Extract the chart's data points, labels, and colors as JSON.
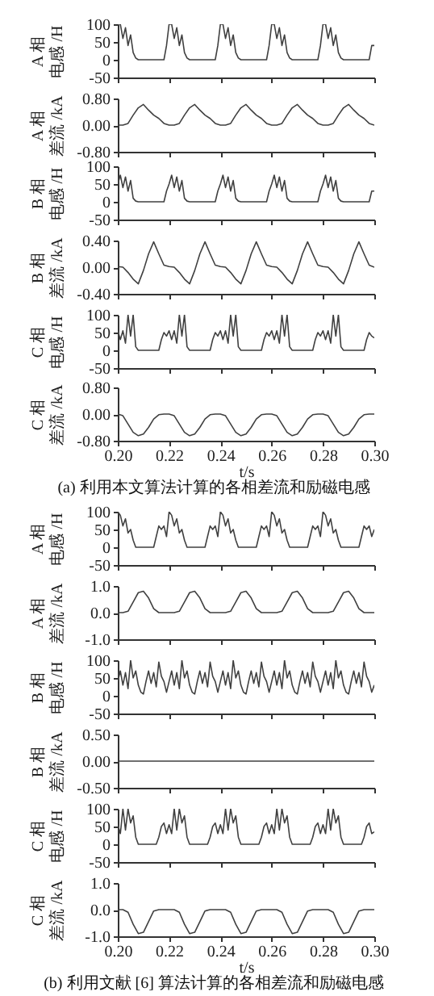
{
  "chart_data": [
    {
      "type": "line",
      "ylabel": "A 相电感 /H",
      "xlim": [
        0.2,
        0.3
      ],
      "xticks": [
        {
          "value": 0.2,
          "label": null
        },
        {
          "value": 0.22,
          "label": null
        },
        {
          "value": 0.24,
          "label": null
        },
        {
          "value": 0.26,
          "label": null
        },
        {
          "value": 0.28,
          "label": null
        },
        {
          "value": 0.3,
          "label": null
        }
      ],
      "ylim": [
        -50,
        100
      ],
      "yticks": [
        -50,
        0,
        50,
        100
      ],
      "tick_labels": "y",
      "x": [
        0.2,
        0.201,
        0.202,
        0.203,
        0.204,
        0.205,
        0.206,
        0.207,
        0.208,
        0.209,
        0.21,
        0.211,
        0.212,
        0.213,
        0.214,
        0.215,
        0.216,
        0.217,
        0.218,
        0.219,
        0.22,
        0.221,
        0.222,
        0.223,
        0.224,
        0.225,
        0.226,
        0.227,
        0.228,
        0.229,
        0.23,
        0.231,
        0.232,
        0.233,
        0.234,
        0.235,
        0.236,
        0.237,
        0.238,
        0.239,
        0.24,
        0.241,
        0.242,
        0.243,
        0.244,
        0.245,
        0.246,
        0.247,
        0.248,
        0.249,
        0.25,
        0.251,
        0.252,
        0.253,
        0.254,
        0.255,
        0.256,
        0.257,
        0.258,
        0.259,
        0.26,
        0.261,
        0.262,
        0.263,
        0.264,
        0.265,
        0.266,
        0.267,
        0.268,
        0.269,
        0.27,
        0.271,
        0.272,
        0.273,
        0.274,
        0.275,
        0.276,
        0.277,
        0.278,
        0.279,
        0.28,
        0.281,
        0.282,
        0.283,
        0.284,
        0.285,
        0.286,
        0.287,
        0.288,
        0.289,
        0.29,
        0.291,
        0.292,
        0.293,
        0.294,
        0.295,
        0.296,
        0.297,
        0.298,
        0.299,
        0.3
      ],
      "series": [
        {
          "color": "#404040",
          "values": [
            100,
            100,
            60,
            90,
            40,
            70,
            20,
            5,
            0,
            0,
            0,
            0,
            0,
            0,
            0,
            0,
            0,
            0,
            0,
            40,
            100,
            100,
            60,
            90,
            40,
            70,
            20,
            5,
            0,
            0,
            0,
            0,
            0,
            0,
            0,
            0,
            0,
            0,
            0,
            40,
            100,
            100,
            60,
            90,
            40,
            70,
            20,
            5,
            0,
            0,
            0,
            0,
            0,
            0,
            0,
            0,
            0,
            0,
            0,
            40,
            100,
            100,
            60,
            90,
            40,
            70,
            20,
            5,
            0,
            0,
            0,
            0,
            0,
            0,
            0,
            0,
            0,
            0,
            0,
            40,
            100,
            100,
            60,
            90,
            40,
            70,
            20,
            5,
            0,
            0,
            0,
            0,
            0,
            0,
            0,
            0,
            0,
            0,
            0,
            40,
            40
          ]
        }
      ]
    },
    {
      "type": "line",
      "ylabel": "A 相差流 /kA",
      "xlim": [
        0.2,
        0.3
      ],
      "xticks": [
        {
          "value": 0.2,
          "label": null
        },
        {
          "value": 0.22,
          "label": null
        },
        {
          "value": 0.24,
          "label": null
        },
        {
          "value": 0.26,
          "label": null
        },
        {
          "value": 0.28,
          "label": null
        },
        {
          "value": 0.3,
          "label": null
        }
      ],
      "ylim": [
        -0.8,
        0.8
      ],
      "yticks": [
        {
          "value": -0.8,
          "label": "-0.80"
        },
        {
          "value": 0,
          "label": "0.00"
        },
        {
          "value": 0.8,
          "label": "0.80"
        }
      ],
      "tick_labels": "y",
      "x": [
        0.2,
        0.202,
        0.204,
        0.206,
        0.208,
        0.21,
        0.212,
        0.214,
        0.216,
        0.218,
        0.22,
        0.222,
        0.224,
        0.226,
        0.228,
        0.23,
        0.232,
        0.234,
        0.236,
        0.238,
        0.24,
        0.242,
        0.244,
        0.246,
        0.248,
        0.25,
        0.252,
        0.254,
        0.256,
        0.258,
        0.26,
        0.262,
        0.264,
        0.266,
        0.268,
        0.27,
        0.272,
        0.274,
        0.276,
        0.278,
        0.28,
        0.282,
        0.284,
        0.286,
        0.288,
        0.29,
        0.292,
        0.294,
        0.296,
        0.298,
        0.3
      ],
      "series": [
        {
          "color": "#404040",
          "values": [
            0,
            0,
            0.05,
            0.3,
            0.52,
            0.62,
            0.45,
            0.3,
            0.2,
            0.05,
            0,
            0,
            0.05,
            0.3,
            0.52,
            0.62,
            0.45,
            0.3,
            0.2,
            0.05,
            0,
            0,
            0.05,
            0.3,
            0.52,
            0.62,
            0.45,
            0.3,
            0.2,
            0.05,
            0,
            0,
            0.05,
            0.3,
            0.52,
            0.62,
            0.45,
            0.3,
            0.2,
            0.05,
            0,
            0,
            0.05,
            0.3,
            0.52,
            0.62,
            0.45,
            0.3,
            0.2,
            0.05,
            0
          ]
        }
      ]
    },
    {
      "type": "line",
      "ylabel": "B 相电感 /H",
      "xlim": [
        0.2,
        0.3
      ],
      "xticks": [
        {
          "value": 0.2,
          "label": null
        },
        {
          "value": 0.22,
          "label": null
        },
        {
          "value": 0.24,
          "label": null
        },
        {
          "value": 0.26,
          "label": null
        },
        {
          "value": 0.28,
          "label": null
        },
        {
          "value": 0.3,
          "label": null
        }
      ],
      "ylim": [
        -50,
        100
      ],
      "yticks": [
        -50,
        0,
        50,
        100
      ],
      "tick_labels": "y",
      "x": [
        0.2,
        0.201,
        0.202,
        0.203,
        0.204,
        0.205,
        0.206,
        0.207,
        0.208,
        0.209,
        0.21,
        0.211,
        0.212,
        0.213,
        0.214,
        0.215,
        0.216,
        0.217,
        0.218,
        0.219,
        0.22,
        0.221,
        0.222,
        0.223,
        0.224,
        0.225,
        0.226,
        0.227,
        0.228,
        0.229,
        0.23,
        0.231,
        0.232,
        0.233,
        0.234,
        0.235,
        0.236,
        0.237,
        0.238,
        0.239,
        0.24,
        0.241,
        0.242,
        0.243,
        0.244,
        0.245,
        0.246,
        0.247,
        0.248,
        0.249,
        0.25,
        0.251,
        0.252,
        0.253,
        0.254,
        0.255,
        0.256,
        0.257,
        0.258,
        0.259,
        0.26,
        0.261,
        0.262,
        0.263,
        0.264,
        0.265,
        0.266,
        0.267,
        0.268,
        0.269,
        0.27,
        0.271,
        0.272,
        0.273,
        0.274,
        0.275,
        0.276,
        0.277,
        0.278,
        0.279,
        0.28,
        0.281,
        0.282,
        0.283,
        0.284,
        0.285,
        0.286,
        0.287,
        0.288,
        0.289,
        0.29,
        0.291,
        0.292,
        0.293,
        0.294,
        0.295,
        0.296,
        0.297,
        0.298,
        0.299,
        0.3
      ],
      "series": [
        {
          "color": "#404040",
          "values": [
            50,
            75,
            40,
            70,
            30,
            60,
            10,
            2,
            0,
            0,
            0,
            0,
            0,
            0,
            0,
            0,
            0,
            0,
            0,
            30,
            50,
            75,
            40,
            70,
            30,
            60,
            10,
            2,
            0,
            0,
            0,
            0,
            0,
            0,
            0,
            0,
            0,
            0,
            0,
            30,
            50,
            75,
            40,
            70,
            30,
            60,
            10,
            2,
            0,
            0,
            0,
            0,
            0,
            0,
            0,
            0,
            0,
            0,
            0,
            30,
            50,
            75,
            40,
            70,
            30,
            60,
            10,
            2,
            0,
            0,
            0,
            0,
            0,
            0,
            0,
            0,
            0,
            0,
            0,
            30,
            50,
            75,
            40,
            70,
            30,
            60,
            10,
            2,
            0,
            0,
            0,
            0,
            0,
            0,
            0,
            0,
            0,
            0,
            0,
            30,
            30
          ]
        }
      ]
    },
    {
      "type": "line",
      "ylabel": "B 相差流 /kA",
      "xlim": [
        0.2,
        0.3
      ],
      "xticks": [
        {
          "value": 0.2,
          "label": null
        },
        {
          "value": 0.22,
          "label": null
        },
        {
          "value": 0.24,
          "label": null
        },
        {
          "value": 0.26,
          "label": null
        },
        {
          "value": 0.28,
          "label": null
        },
        {
          "value": 0.3,
          "label": null
        }
      ],
      "ylim": [
        -0.4,
        0.4
      ],
      "yticks": [
        {
          "value": -0.4,
          "label": "-0.40"
        },
        {
          "value": 0,
          "label": "0.00"
        },
        {
          "value": 0.4,
          "label": "0.40"
        }
      ],
      "tick_labels": "y",
      "x": [
        0.2,
        0.202,
        0.204,
        0.206,
        0.208,
        0.21,
        0.212,
        0.214,
        0.216,
        0.218,
        0.22,
        0.222,
        0.224,
        0.226,
        0.228,
        0.23,
        0.232,
        0.234,
        0.236,
        0.238,
        0.24,
        0.242,
        0.244,
        0.246,
        0.248,
        0.25,
        0.252,
        0.254,
        0.256,
        0.258,
        0.26,
        0.262,
        0.264,
        0.266,
        0.268,
        0.27,
        0.272,
        0.274,
        0.276,
        0.278,
        0.28,
        0.282,
        0.284,
        0.286,
        0.288,
        0.29,
        0.292,
        0.294,
        0.296,
        0.298,
        0.3
      ],
      "series": [
        {
          "color": "#404040",
          "values": [
            0.01,
            0,
            -0.08,
            -0.18,
            -0.25,
            -0.05,
            0.2,
            0.38,
            0.2,
            0.03,
            0.01,
            0,
            -0.08,
            -0.18,
            -0.25,
            -0.05,
            0.2,
            0.38,
            0.2,
            0.03,
            0.01,
            0,
            -0.08,
            -0.18,
            -0.25,
            -0.05,
            0.2,
            0.38,
            0.2,
            0.03,
            0.01,
            0,
            -0.08,
            -0.18,
            -0.25,
            -0.05,
            0.2,
            0.38,
            0.2,
            0.03,
            0.01,
            0,
            -0.08,
            -0.18,
            -0.25,
            -0.05,
            0.2,
            0.38,
            0.2,
            0.03,
            0
          ]
        }
      ]
    },
    {
      "type": "line",
      "ylabel": "C 相电感 /H",
      "xlim": [
        0.2,
        0.3
      ],
      "xticks": [
        {
          "value": 0.2,
          "label": null
        },
        {
          "value": 0.22,
          "label": null
        },
        {
          "value": 0.24,
          "label": null
        },
        {
          "value": 0.26,
          "label": null
        },
        {
          "value": 0.28,
          "label": null
        },
        {
          "value": 0.3,
          "label": null
        }
      ],
      "ylim": [
        -50,
        100
      ],
      "yticks": [
        -50,
        0,
        50,
        100
      ],
      "tick_labels": "y",
      "x": [
        0.2,
        0.201,
        0.202,
        0.203,
        0.204,
        0.205,
        0.206,
        0.207,
        0.208,
        0.209,
        0.21,
        0.211,
        0.212,
        0.213,
        0.214,
        0.215,
        0.216,
        0.217,
        0.218,
        0.219,
        0.22,
        0.221,
        0.222,
        0.223,
        0.224,
        0.225,
        0.226,
        0.227,
        0.228,
        0.229,
        0.23,
        0.231,
        0.232,
        0.233,
        0.234,
        0.235,
        0.236,
        0.237,
        0.238,
        0.239,
        0.24,
        0.241,
        0.242,
        0.243,
        0.244,
        0.245,
        0.246,
        0.247,
        0.248,
        0.249,
        0.25,
        0.251,
        0.252,
        0.253,
        0.254,
        0.255,
        0.256,
        0.257,
        0.258,
        0.259,
        0.26,
        0.261,
        0.262,
        0.263,
        0.264,
        0.265,
        0.266,
        0.267,
        0.268,
        0.269,
        0.27,
        0.271,
        0.272,
        0.273,
        0.274,
        0.275,
        0.276,
        0.277,
        0.278,
        0.279,
        0.28,
        0.281,
        0.282,
        0.283,
        0.284,
        0.285,
        0.286,
        0.287,
        0.288,
        0.289,
        0.29,
        0.291,
        0.292,
        0.293,
        0.294,
        0.295,
        0.296,
        0.297,
        0.298,
        0.299,
        0.3
      ],
      "series": [
        {
          "color": "#404040",
          "values": [
            55,
            30,
            55,
            20,
            100,
            40,
            100,
            10,
            0,
            0,
            0,
            0,
            0,
            0,
            0,
            0,
            0,
            30,
            50,
            40,
            55,
            30,
            55,
            20,
            100,
            40,
            100,
            10,
            0,
            0,
            0,
            0,
            0,
            0,
            0,
            0,
            0,
            30,
            50,
            40,
            55,
            30,
            55,
            20,
            100,
            40,
            100,
            10,
            0,
            0,
            0,
            0,
            0,
            0,
            0,
            0,
            0,
            30,
            50,
            40,
            55,
            30,
            55,
            20,
            100,
            40,
            100,
            10,
            0,
            0,
            0,
            0,
            0,
            0,
            0,
            0,
            0,
            30,
            50,
            40,
            55,
            30,
            55,
            20,
            100,
            40,
            100,
            10,
            0,
            0,
            0,
            0,
            0,
            0,
            0,
            0,
            0,
            30,
            50,
            40,
            35
          ]
        }
      ]
    },
    {
      "type": "line",
      "ylabel": "C 相差流 /kA",
      "xlabel": "t/s",
      "annotations": [
        "(a) 利用本文算法计算的各相差流和励磁电感"
      ],
      "xlim": [
        0.2,
        0.3
      ],
      "xticks": [
        {
          "value": 0.2,
          "label": "0.20"
        },
        {
          "value": 0.22,
          "label": "0.22"
        },
        {
          "value": 0.24,
          "label": "0.24"
        },
        {
          "value": 0.26,
          "label": "0.26"
        },
        {
          "value": 0.28,
          "label": "0.28"
        },
        {
          "value": 0.3,
          "label": "0.30"
        }
      ],
      "ylim": [
        -0.8,
        0.8
      ],
      "yticks": [
        {
          "value": -0.8,
          "label": "-0.80"
        },
        {
          "value": 0,
          "label": "0.00"
        },
        {
          "value": 0.8,
          "label": "0.80"
        }
      ],
      "x": [
        0.2,
        0.202,
        0.204,
        0.206,
        0.208,
        0.21,
        0.212,
        0.214,
        0.216,
        0.218,
        0.22,
        0.222,
        0.224,
        0.226,
        0.228,
        0.23,
        0.232,
        0.234,
        0.236,
        0.238,
        0.24,
        0.242,
        0.244,
        0.246,
        0.248,
        0.25,
        0.252,
        0.254,
        0.256,
        0.258,
        0.26,
        0.262,
        0.264,
        0.266,
        0.268,
        0.27,
        0.272,
        0.274,
        0.276,
        0.278,
        0.28,
        0.282,
        0.284,
        0.286,
        0.288,
        0.29,
        0.292,
        0.294,
        0.296,
        0.298,
        0.3
      ],
      "series": [
        {
          "color": "#404040",
          "values": [
            0,
            -0.05,
            -0.3,
            -0.55,
            -0.65,
            -0.6,
            -0.4,
            -0.15,
            -0.02,
            0,
            0,
            -0.05,
            -0.3,
            -0.55,
            -0.65,
            -0.6,
            -0.4,
            -0.15,
            -0.02,
            0,
            0,
            -0.05,
            -0.3,
            -0.55,
            -0.65,
            -0.6,
            -0.4,
            -0.15,
            -0.02,
            0,
            0,
            -0.05,
            -0.3,
            -0.55,
            -0.65,
            -0.6,
            -0.4,
            -0.15,
            -0.02,
            0,
            0,
            -0.05,
            -0.3,
            -0.55,
            -0.65,
            -0.6,
            -0.4,
            -0.15,
            -0.02,
            0,
            0
          ]
        }
      ]
    },
    {
      "type": "line",
      "ylabel": "A 相电感 /H",
      "xlim": [
        0.2,
        0.3
      ],
      "xticks": [
        {
          "value": 0.2,
          "label": null
        },
        {
          "value": 0.22,
          "label": null
        },
        {
          "value": 0.24,
          "label": null
        },
        {
          "value": 0.26,
          "label": null
        },
        {
          "value": 0.28,
          "label": null
        },
        {
          "value": 0.3,
          "label": null
        }
      ],
      "ylim": [
        -50,
        100
      ],
      "yticks": [
        -50,
        0,
        50,
        100
      ],
      "tick_labels": "y",
      "x": [
        0.2,
        0.201,
        0.202,
        0.203,
        0.204,
        0.205,
        0.206,
        0.207,
        0.208,
        0.209,
        0.21,
        0.211,
        0.212,
        0.213,
        0.214,
        0.215,
        0.216,
        0.217,
        0.218,
        0.219,
        0.22,
        0.221,
        0.222,
        0.223,
        0.224,
        0.225,
        0.226,
        0.227,
        0.228,
        0.229,
        0.23,
        0.231,
        0.232,
        0.233,
        0.234,
        0.235,
        0.236,
        0.237,
        0.238,
        0.239,
        0.24,
        0.241,
        0.242,
        0.243,
        0.244,
        0.245,
        0.246,
        0.247,
        0.248,
        0.249,
        0.25,
        0.251,
        0.252,
        0.253,
        0.254,
        0.255,
        0.256,
        0.257,
        0.258,
        0.259,
        0.26,
        0.261,
        0.262,
        0.263,
        0.264,
        0.265,
        0.266,
        0.267,
        0.268,
        0.269,
        0.27,
        0.271,
        0.272,
        0.273,
        0.274,
        0.275,
        0.276,
        0.277,
        0.278,
        0.279,
        0.28,
        0.281,
        0.282,
        0.283,
        0.284,
        0.285,
        0.286,
        0.287,
        0.288,
        0.289,
        0.29,
        0.291,
        0.292,
        0.293,
        0.294,
        0.295,
        0.296,
        0.297,
        0.298,
        0.299,
        0.3
      ],
      "series": [
        {
          "color": "#404040",
          "values": [
            100,
            90,
            60,
            80,
            40,
            50,
            20,
            0,
            0,
            0,
            0,
            0,
            0,
            0,
            0,
            30,
            60,
            50,
            60,
            30,
            100,
            90,
            60,
            80,
            40,
            50,
            20,
            0,
            0,
            0,
            0,
            0,
            0,
            0,
            0,
            30,
            60,
            50,
            60,
            30,
            100,
            90,
            60,
            80,
            40,
            50,
            20,
            0,
            0,
            0,
            0,
            0,
            0,
            0,
            0,
            30,
            60,
            50,
            60,
            30,
            100,
            90,
            60,
            80,
            40,
            50,
            20,
            0,
            0,
            0,
            0,
            0,
            0,
            0,
            0,
            30,
            60,
            50,
            60,
            30,
            100,
            90,
            60,
            80,
            40,
            50,
            20,
            0,
            0,
            0,
            0,
            0,
            0,
            0,
            0,
            30,
            60,
            50,
            60,
            30,
            50
          ]
        }
      ]
    },
    {
      "type": "line",
      "ylabel": "A 相差流 /kA",
      "xlim": [
        0.2,
        0.3
      ],
      "xticks": [
        {
          "value": 0.2,
          "label": null
        },
        {
          "value": 0.22,
          "label": null
        },
        {
          "value": 0.24,
          "label": null
        },
        {
          "value": 0.26,
          "label": null
        },
        {
          "value": 0.28,
          "label": null
        },
        {
          "value": 0.3,
          "label": null
        }
      ],
      "ylim": [
        -1,
        1
      ],
      "yticks": [
        {
          "value": -1,
          "label": "-1.0"
        },
        {
          "value": 0,
          "label": "0.0"
        },
        {
          "value": 1,
          "label": "1.0"
        }
      ],
      "tick_labels": "y",
      "x": [
        0.2,
        0.202,
        0.204,
        0.206,
        0.208,
        0.21,
        0.212,
        0.214,
        0.216,
        0.218,
        0.22,
        0.222,
        0.224,
        0.226,
        0.228,
        0.23,
        0.232,
        0.234,
        0.236,
        0.238,
        0.24,
        0.242,
        0.244,
        0.246,
        0.248,
        0.25,
        0.252,
        0.254,
        0.256,
        0.258,
        0.26,
        0.262,
        0.264,
        0.266,
        0.268,
        0.27,
        0.272,
        0.274,
        0.276,
        0.278,
        0.28,
        0.282,
        0.284,
        0.286,
        0.288,
        0.29,
        0.292,
        0.294,
        0.296,
        0.298,
        0.3
      ],
      "series": [
        {
          "color": "#404040",
          "values": [
            0,
            0,
            0.05,
            0.4,
            0.75,
            0.8,
            0.55,
            0.15,
            0,
            0,
            0,
            0,
            0.05,
            0.4,
            0.75,
            0.8,
            0.55,
            0.15,
            0,
            0,
            0,
            0,
            0.05,
            0.4,
            0.75,
            0.8,
            0.55,
            0.15,
            0,
            0,
            0,
            0,
            0.05,
            0.4,
            0.75,
            0.8,
            0.55,
            0.15,
            0,
            0,
            0,
            0,
            0.05,
            0.4,
            0.75,
            0.8,
            0.55,
            0.15,
            0,
            0,
            0
          ]
        }
      ]
    },
    {
      "type": "line",
      "ylabel": "B 相电感 /H",
      "xlim": [
        0.2,
        0.3
      ],
      "xticks": [
        {
          "value": 0.2,
          "label": null
        },
        {
          "value": 0.22,
          "label": null
        },
        {
          "value": 0.24,
          "label": null
        },
        {
          "value": 0.26,
          "label": null
        },
        {
          "value": 0.28,
          "label": null
        },
        {
          "value": 0.3,
          "label": null
        }
      ],
      "ylim": [
        -50,
        100
      ],
      "yticks": [
        -50,
        0,
        50,
        100
      ],
      "tick_labels": "y",
      "x": [
        0.2,
        0.201,
        0.202,
        0.203,
        0.204,
        0.205,
        0.206,
        0.207,
        0.208,
        0.209,
        0.21,
        0.211,
        0.212,
        0.213,
        0.214,
        0.215,
        0.216,
        0.217,
        0.218,
        0.219,
        0.22,
        0.221,
        0.222,
        0.223,
        0.224,
        0.225,
        0.226,
        0.227,
        0.228,
        0.229,
        0.23,
        0.231,
        0.232,
        0.233,
        0.234,
        0.235,
        0.236,
        0.237,
        0.238,
        0.239,
        0.24,
        0.241,
        0.242,
        0.243,
        0.244,
        0.245,
        0.246,
        0.247,
        0.248,
        0.249,
        0.25,
        0.251,
        0.252,
        0.253,
        0.254,
        0.255,
        0.256,
        0.257,
        0.258,
        0.259,
        0.26,
        0.261,
        0.262,
        0.263,
        0.264,
        0.265,
        0.266,
        0.267,
        0.268,
        0.269,
        0.27,
        0.271,
        0.272,
        0.273,
        0.274,
        0.275,
        0.276,
        0.277,
        0.278,
        0.279,
        0.28,
        0.281,
        0.282,
        0.283,
        0.284,
        0.285,
        0.286,
        0.287,
        0.288,
        0.289,
        0.29,
        0.291,
        0.292,
        0.293,
        0.294,
        0.295,
        0.296,
        0.297,
        0.298,
        0.299,
        0.3
      ],
      "series": [
        {
          "color": "#404040",
          "values": [
            40,
            70,
            30,
            65,
            20,
            100,
            50,
            70,
            30,
            10,
            5,
            40,
            70,
            35,
            65,
            25,
            95,
            55,
            40,
            10,
            40,
            70,
            30,
            65,
            20,
            100,
            50,
            70,
            30,
            10,
            5,
            40,
            70,
            35,
            65,
            25,
            95,
            55,
            40,
            10,
            40,
            70,
            30,
            65,
            20,
            100,
            50,
            70,
            30,
            10,
            5,
            40,
            70,
            35,
            65,
            25,
            95,
            55,
            40,
            10,
            40,
            70,
            30,
            65,
            20,
            100,
            50,
            70,
            30,
            10,
            5,
            40,
            70,
            35,
            65,
            25,
            95,
            55,
            40,
            10,
            40,
            70,
            30,
            65,
            20,
            100,
            50,
            70,
            30,
            10,
            5,
            40,
            70,
            35,
            65,
            25,
            95,
            55,
            40,
            10,
            30
          ]
        }
      ]
    },
    {
      "type": "line",
      "ylabel": "B 相差流 /kA",
      "xlim": [
        0.2,
        0.3
      ],
      "xticks": [
        {
          "value": 0.2,
          "label": null
        },
        {
          "value": 0.22,
          "label": null
        },
        {
          "value": 0.24,
          "label": null
        },
        {
          "value": 0.26,
          "label": null
        },
        {
          "value": 0.28,
          "label": null
        },
        {
          "value": 0.3,
          "label": null
        }
      ],
      "ylim": [
        -0.5,
        0.5
      ],
      "yticks": [
        {
          "value": -0.5,
          "label": "-0.50"
        },
        {
          "value": 0,
          "label": "0.00"
        },
        {
          "value": 0.5,
          "label": "0.50"
        }
      ],
      "tick_labels": "y",
      "x": [
        0.2,
        0.21,
        0.22,
        0.23,
        0.24,
        0.25,
        0.26,
        0.27,
        0.28,
        0.29,
        0.3
      ],
      "series": [
        {
          "color": "#404040",
          "values": [
            0,
            0,
            0,
            0,
            0,
            0,
            0,
            0,
            0,
            0,
            0
          ]
        }
      ]
    },
    {
      "type": "line",
      "ylabel": "C 相电感 /H",
      "xlim": [
        0.2,
        0.3
      ],
      "xticks": [
        {
          "value": 0.2,
          "label": null
        },
        {
          "value": 0.22,
          "label": null
        },
        {
          "value": 0.24,
          "label": null
        },
        {
          "value": 0.26,
          "label": null
        },
        {
          "value": 0.28,
          "label": null
        },
        {
          "value": 0.3,
          "label": null
        }
      ],
      "ylim": [
        -50,
        100
      ],
      "yticks": [
        -50,
        0,
        50,
        100
      ],
      "tick_labels": "y",
      "x": [
        0.2,
        0.201,
        0.202,
        0.203,
        0.204,
        0.205,
        0.206,
        0.207,
        0.208,
        0.209,
        0.21,
        0.211,
        0.212,
        0.213,
        0.214,
        0.215,
        0.216,
        0.217,
        0.218,
        0.219,
        0.22,
        0.221,
        0.222,
        0.223,
        0.224,
        0.225,
        0.226,
        0.227,
        0.228,
        0.229,
        0.23,
        0.231,
        0.232,
        0.233,
        0.234,
        0.235,
        0.236,
        0.237,
        0.238,
        0.239,
        0.24,
        0.241,
        0.242,
        0.243,
        0.244,
        0.245,
        0.246,
        0.247,
        0.248,
        0.249,
        0.25,
        0.251,
        0.252,
        0.253,
        0.254,
        0.255,
        0.256,
        0.257,
        0.258,
        0.259,
        0.26,
        0.261,
        0.262,
        0.263,
        0.264,
        0.265,
        0.266,
        0.267,
        0.268,
        0.269,
        0.27,
        0.271,
        0.272,
        0.273,
        0.274,
        0.275,
        0.276,
        0.277,
        0.278,
        0.279,
        0.28,
        0.281,
        0.282,
        0.283,
        0.284,
        0.285,
        0.286,
        0.287,
        0.288,
        0.289,
        0.29,
        0.291,
        0.292,
        0.293,
        0.294,
        0.295,
        0.296,
        0.297,
        0.298,
        0.299,
        0.3
      ],
      "series": [
        {
          "color": "#404040",
          "values": [
            55,
            30,
            100,
            40,
            100,
            60,
            80,
            20,
            0,
            0,
            0,
            0,
            0,
            0,
            0,
            0,
            20,
            50,
            60,
            30,
            55,
            30,
            100,
            40,
            100,
            60,
            80,
            20,
            0,
            0,
            0,
            0,
            0,
            0,
            0,
            0,
            20,
            50,
            60,
            30,
            55,
            30,
            100,
            40,
            100,
            60,
            80,
            20,
            0,
            0,
            0,
            0,
            0,
            0,
            0,
            0,
            20,
            50,
            60,
            30,
            55,
            30,
            100,
            40,
            100,
            60,
            80,
            20,
            0,
            0,
            0,
            0,
            0,
            0,
            0,
            0,
            20,
            50,
            60,
            30,
            55,
            30,
            100,
            40,
            100,
            60,
            80,
            20,
            0,
            0,
            0,
            0,
            0,
            0,
            0,
            0,
            20,
            50,
            60,
            30,
            35
          ]
        }
      ]
    },
    {
      "type": "line",
      "ylabel": "C 相差流 /kA",
      "xlabel": "t/s",
      "annotations": [
        "(b) 利用文献 [6] 算法计算的各相差流和励磁电感"
      ],
      "xlim": [
        0.2,
        0.3
      ],
      "xticks": [
        {
          "value": 0.2,
          "label": "0.20"
        },
        {
          "value": 0.22,
          "label": "0.22"
        },
        {
          "value": 0.24,
          "label": "0.24"
        },
        {
          "value": 0.26,
          "label": "0.26"
        },
        {
          "value": 0.28,
          "label": "0.28"
        },
        {
          "value": 0.3,
          "label": "0.30"
        }
      ],
      "ylim": [
        -1,
        1
      ],
      "yticks": [
        {
          "value": -1,
          "label": "-1.0"
        },
        {
          "value": 0,
          "label": "0.0"
        },
        {
          "value": 1,
          "label": "1.0"
        }
      ],
      "x": [
        0.2,
        0.202,
        0.204,
        0.206,
        0.208,
        0.21,
        0.212,
        0.214,
        0.216,
        0.218,
        0.22,
        0.222,
        0.224,
        0.226,
        0.228,
        0.23,
        0.232,
        0.234,
        0.236,
        0.238,
        0.24,
        0.242,
        0.244,
        0.246,
        0.248,
        0.25,
        0.252,
        0.254,
        0.256,
        0.258,
        0.26,
        0.262,
        0.264,
        0.266,
        0.268,
        0.27,
        0.272,
        0.274,
        0.276,
        0.278,
        0.28,
        0.282,
        0.284,
        0.286,
        0.288,
        0.29,
        0.292,
        0.294,
        0.296,
        0.298,
        0.3
      ],
      "series": [
        {
          "color": "#404040",
          "values": [
            0,
            0,
            -0.1,
            -0.55,
            -0.9,
            -0.85,
            -0.45,
            -0.05,
            0,
            0,
            0,
            0,
            -0.1,
            -0.55,
            -0.9,
            -0.85,
            -0.45,
            -0.05,
            0,
            0,
            0,
            0,
            -0.1,
            -0.55,
            -0.9,
            -0.85,
            -0.45,
            -0.05,
            0,
            0,
            0,
            0,
            -0.1,
            -0.55,
            -0.9,
            -0.85,
            -0.45,
            -0.05,
            0,
            0,
            0,
            0,
            -0.1,
            -0.55,
            -0.9,
            -0.85,
            -0.45,
            -0.05,
            0,
            0,
            0
          ]
        }
      ]
    }
  ]
}
